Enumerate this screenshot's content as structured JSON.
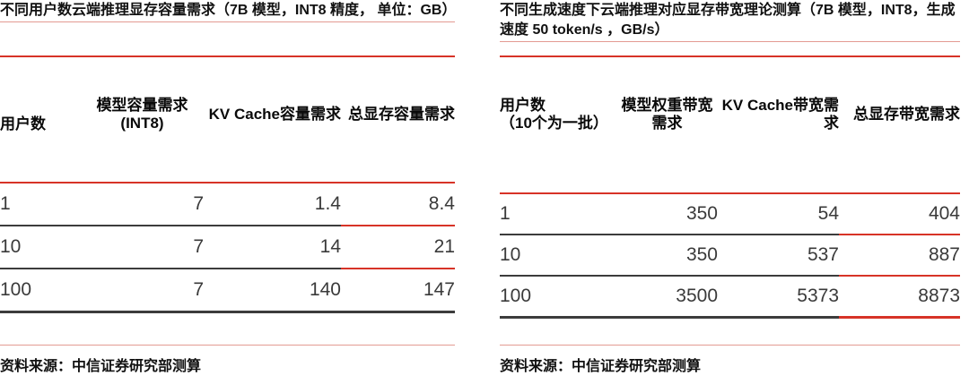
{
  "colors": {
    "red": "#D73327",
    "red-light": "#E39B92",
    "rule-dark": "#3C3C3C"
  },
  "left": {
    "title": "不同用户数云端推理显存容量需求（7B 模型，INT8 精度， 单位：GB）",
    "table": {
      "columns": [
        "用户数",
        "模型容量需求\n(INT8)",
        "KV Cache容量需求",
        "总显存容量需求"
      ],
      "rows": [
        [
          "1",
          "7",
          "1.4",
          "8.4"
        ],
        [
          "10",
          "7",
          "14",
          "21"
        ],
        [
          "100",
          "7",
          "140",
          "147"
        ]
      ]
    },
    "source": "资料来源：中信证券研究部测算"
  },
  "right": {
    "title": "不同生成速度下云端推理对应显存带宽理论测算（7B 模型，INT8，生成速度 50 token/s ，GB/s）",
    "table": {
      "columns": [
        "用户数\n（10个为一批）",
        "模型权重带宽\n需求",
        "KV Cache带宽需\n求",
        "总显存带宽需求"
      ],
      "rows": [
        [
          "1",
          "350",
          "54",
          "404"
        ],
        [
          "10",
          "350",
          "537",
          "887"
        ],
        [
          "100",
          "3500",
          "5373",
          "8873"
        ]
      ]
    },
    "source": "资料来源：中信证券研究部测算"
  }
}
